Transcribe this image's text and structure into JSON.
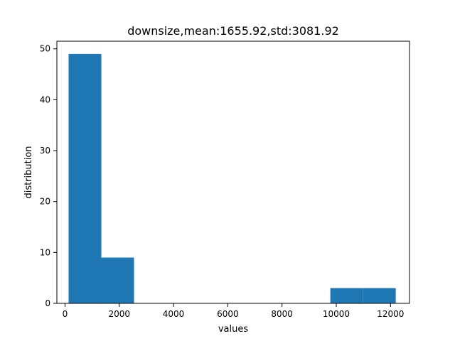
{
  "chart_data": {
    "type": "bar",
    "title": "downsize,mean:1655.92,std:3081.92",
    "xlabel": "values",
    "ylabel": "distribution",
    "xlim": [
      -300,
      12700
    ],
    "ylim": [
      0,
      51.5
    ],
    "x_ticks": [
      0,
      2000,
      4000,
      6000,
      8000,
      10000,
      12000
    ],
    "y_ticks": [
      0,
      10,
      20,
      30,
      40,
      50
    ],
    "bar_color": "#1f77b4",
    "bins": [
      {
        "x0": 133,
        "x1": 1339,
        "value": 49
      },
      {
        "x0": 1339,
        "x1": 2545,
        "value": 9
      },
      {
        "x0": 2545,
        "x1": 3751,
        "value": 0
      },
      {
        "x0": 3751,
        "x1": 4957,
        "value": 0
      },
      {
        "x0": 4957,
        "x1": 6163,
        "value": 0
      },
      {
        "x0": 6163,
        "x1": 7369,
        "value": 0
      },
      {
        "x0": 7369,
        "x1": 8575,
        "value": 0
      },
      {
        "x0": 8575,
        "x1": 9781,
        "value": 0
      },
      {
        "x0": 9781,
        "x1": 10987,
        "value": 3
      },
      {
        "x0": 10987,
        "x1": 12193,
        "value": 3
      }
    ],
    "grid": false,
    "legend": "none"
  }
}
